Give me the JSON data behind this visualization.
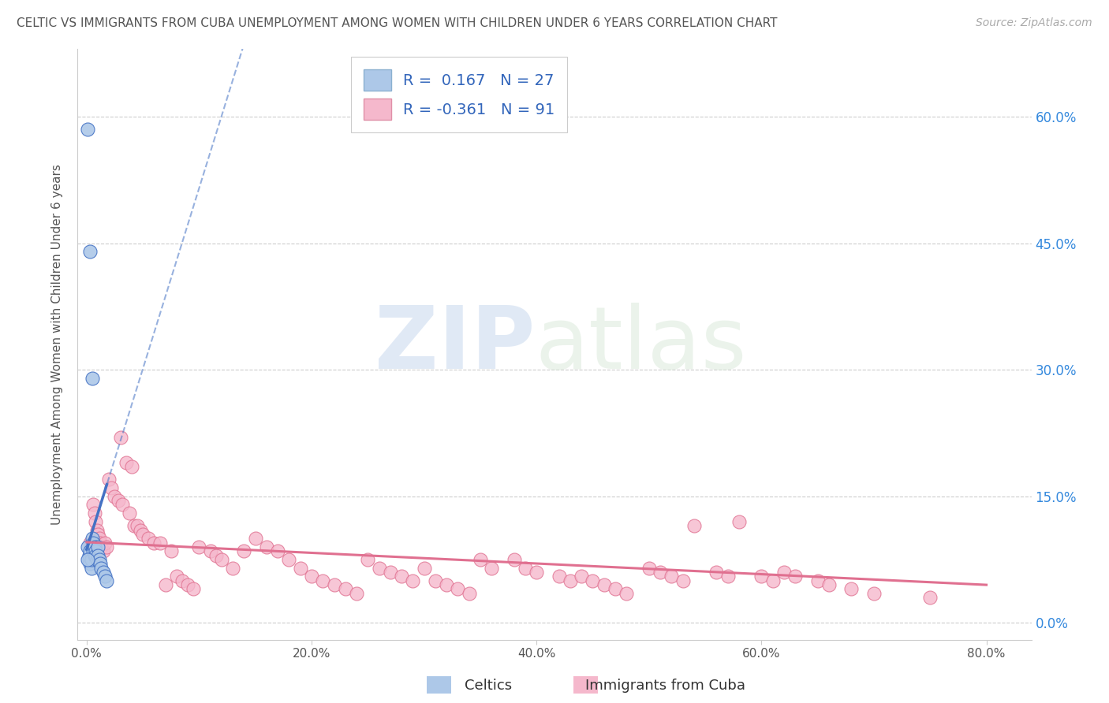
{
  "title": "CELTIC VS IMMIGRANTS FROM CUBA UNEMPLOYMENT AMONG WOMEN WITH CHILDREN UNDER 6 YEARS CORRELATION CHART",
  "source": "Source: ZipAtlas.com",
  "ylabel": "Unemployment Among Women with Children Under 6 years",
  "R1": 0.167,
  "N1": 27,
  "R2": -0.361,
  "N2": 91,
  "color1": "#adc8e8",
  "color2": "#f5b8cc",
  "line_color1": "#4472c4",
  "line_color2": "#e07090",
  "legend_label1": "Celtics",
  "legend_label2": "Immigrants from Cuba",
  "x_ticks": [
    0.0,
    0.2,
    0.4,
    0.6,
    0.8
  ],
  "y_ticks": [
    0.0,
    0.15,
    0.3,
    0.45,
    0.6
  ],
  "xlim": [
    -0.008,
    0.84
  ],
  "ylim": [
    -0.02,
    0.68
  ],
  "celtics_x": [
    0.001,
    0.001,
    0.002,
    0.002,
    0.003,
    0.003,
    0.003,
    0.004,
    0.004,
    0.005,
    0.005,
    0.006,
    0.006,
    0.007,
    0.007,
    0.008,
    0.008,
    0.009,
    0.01,
    0.01,
    0.011,
    0.012,
    0.013,
    0.015,
    0.016,
    0.018,
    0.001
  ],
  "celtics_y": [
    0.585,
    0.09,
    0.08,
    0.075,
    0.44,
    0.085,
    0.07,
    0.065,
    0.075,
    0.29,
    0.1,
    0.095,
    0.085,
    0.09,
    0.08,
    0.085,
    0.08,
    0.075,
    0.09,
    0.08,
    0.075,
    0.07,
    0.065,
    0.06,
    0.055,
    0.05,
    0.075
  ],
  "cuba_x": [
    0.003,
    0.004,
    0.005,
    0.006,
    0.007,
    0.008,
    0.009,
    0.01,
    0.011,
    0.012,
    0.013,
    0.015,
    0.016,
    0.018,
    0.02,
    0.022,
    0.025,
    0.028,
    0.03,
    0.032,
    0.035,
    0.038,
    0.04,
    0.042,
    0.045,
    0.048,
    0.05,
    0.055,
    0.06,
    0.065,
    0.07,
    0.075,
    0.08,
    0.085,
    0.09,
    0.095,
    0.1,
    0.11,
    0.115,
    0.12,
    0.13,
    0.14,
    0.15,
    0.16,
    0.17,
    0.18,
    0.19,
    0.2,
    0.21,
    0.22,
    0.23,
    0.24,
    0.25,
    0.26,
    0.27,
    0.28,
    0.29,
    0.3,
    0.31,
    0.32,
    0.33,
    0.34,
    0.35,
    0.36,
    0.38,
    0.39,
    0.4,
    0.42,
    0.43,
    0.44,
    0.45,
    0.46,
    0.47,
    0.48,
    0.5,
    0.51,
    0.52,
    0.53,
    0.54,
    0.56,
    0.57,
    0.58,
    0.6,
    0.61,
    0.62,
    0.63,
    0.65,
    0.66,
    0.68,
    0.7,
    0.75
  ],
  "cuba_y": [
    0.095,
    0.09,
    0.085,
    0.14,
    0.13,
    0.12,
    0.11,
    0.105,
    0.1,
    0.095,
    0.09,
    0.085,
    0.095,
    0.09,
    0.17,
    0.16,
    0.15,
    0.145,
    0.22,
    0.14,
    0.19,
    0.13,
    0.185,
    0.115,
    0.115,
    0.11,
    0.105,
    0.1,
    0.095,
    0.095,
    0.045,
    0.085,
    0.055,
    0.05,
    0.045,
    0.04,
    0.09,
    0.085,
    0.08,
    0.075,
    0.065,
    0.085,
    0.1,
    0.09,
    0.085,
    0.075,
    0.065,
    0.055,
    0.05,
    0.045,
    0.04,
    0.035,
    0.075,
    0.065,
    0.06,
    0.055,
    0.05,
    0.065,
    0.05,
    0.045,
    0.04,
    0.035,
    0.075,
    0.065,
    0.075,
    0.065,
    0.06,
    0.055,
    0.05,
    0.055,
    0.05,
    0.045,
    0.04,
    0.035,
    0.065,
    0.06,
    0.055,
    0.05,
    0.115,
    0.06,
    0.055,
    0.12,
    0.055,
    0.05,
    0.06,
    0.055,
    0.05,
    0.045,
    0.04,
    0.035,
    0.03
  ]
}
